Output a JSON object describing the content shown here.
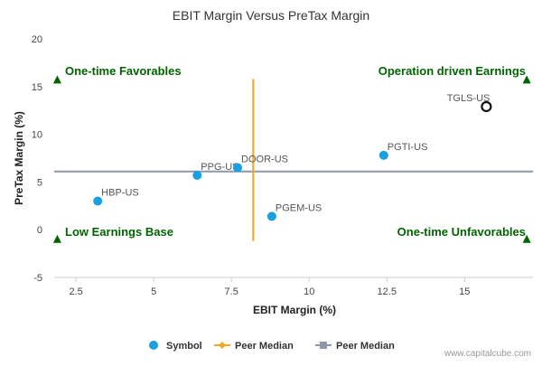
{
  "chart_data": {
    "type": "scatter",
    "title": "EBIT Margin Versus PreTax Margin",
    "xlabel": "EBIT Margin (%)",
    "ylabel": "PreTax Margin (%)",
    "xlim": [
      1.8,
      17.2
    ],
    "ylim": [
      -5,
      20
    ],
    "xticks": [
      "2.5",
      "5",
      "7.5",
      "10",
      "12.5",
      "15"
    ],
    "yticks": [
      "20",
      "15",
      "10",
      "5",
      "0",
      "-5"
    ],
    "grid": false,
    "points": [
      {
        "label": "HBP-US",
        "x": 3.2,
        "y": 3.0
      },
      {
        "label": "PPG-US",
        "x": 6.4,
        "y": 5.7
      },
      {
        "label": "DOOR-US",
        "x": 7.7,
        "y": 6.5
      },
      {
        "label": "PGEM-US",
        "x": 8.8,
        "y": 1.4
      },
      {
        "label": "PGTI-US",
        "x": 12.4,
        "y": 7.8
      },
      {
        "label": "TGLS-US",
        "x": 15.7,
        "y": 12.9,
        "highlight": true
      }
    ],
    "peer_median_x": 8.2,
    "peer_median_y": 6.1,
    "quadrants": {
      "top_left": "One-time Favorables",
      "top_right": "Operation driven Earnings",
      "bottom_left": "Low Earnings Base",
      "bottom_right": "One-time Unfavorables"
    },
    "quadrant_markers": [
      {
        "x": 1.9,
        "y": 15.7
      },
      {
        "x": 17.0,
        "y": 15.7
      },
      {
        "x": 1.9,
        "y": -1.0
      },
      {
        "x": 17.0,
        "y": -1.0
      }
    ],
    "legend": {
      "placement": "bottom-center",
      "items": [
        {
          "label": "Symbol",
          "kind": "dot",
          "color": "#1a9fe0"
        },
        {
          "label": "Peer Median",
          "kind": "diamond-line",
          "color": "#f5a623"
        },
        {
          "label": "Peer Median",
          "kind": "square-line",
          "color": "#8e97a8"
        }
      ]
    },
    "colors": {
      "symbol": "#1a9fe0",
      "highlight_stroke": "#111111",
      "median_x": "#f5a623",
      "median_y": "#8e97a8",
      "quadrant": "#006400"
    }
  },
  "credit": "www.capitalcube.com"
}
